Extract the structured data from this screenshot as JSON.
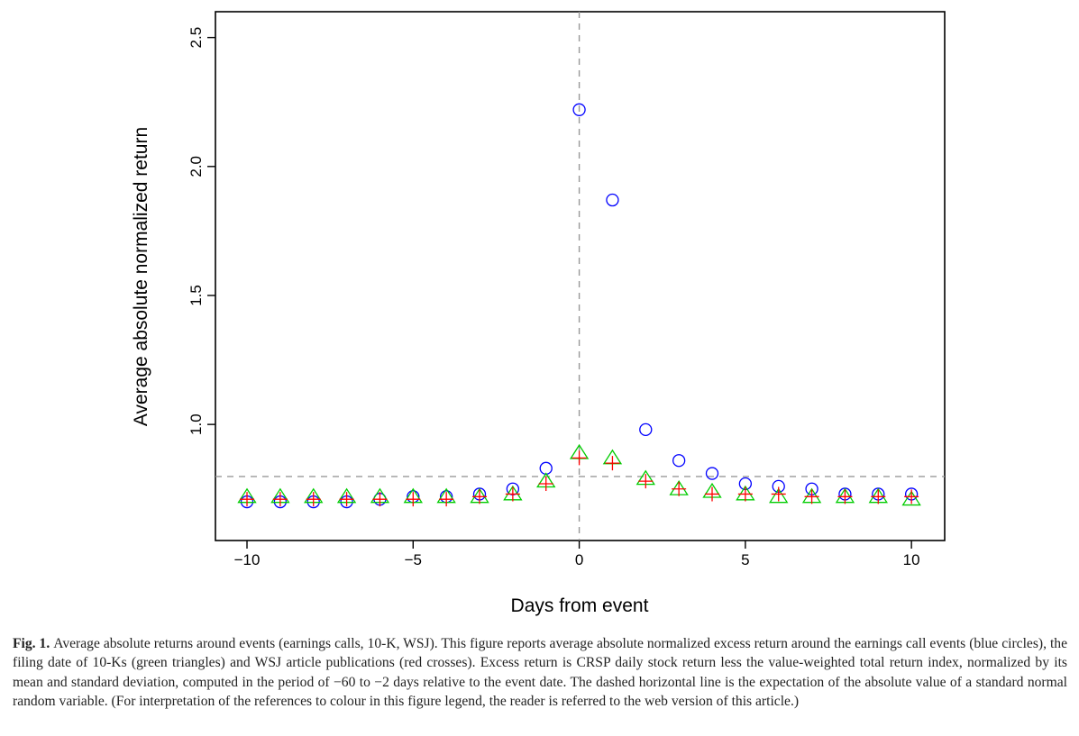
{
  "chart_data": {
    "type": "scatter",
    "xlabel": "Days from event",
    "ylabel": "Average absolute normalized return",
    "xlim": [
      -10.95,
      11.0
    ],
    "ylim": [
      0.55,
      2.6
    ],
    "xticks": [
      -10,
      -5,
      0,
      5,
      10
    ],
    "xtick_labels": [
      "−10",
      "−5",
      "0",
      "5",
      "10"
    ],
    "yticks": [
      1.0,
      1.5,
      2.0,
      2.5
    ],
    "ytick_labels": [
      "1.0",
      "1.5",
      "2.0",
      "2.5"
    ],
    "grid": false,
    "reference_lines": {
      "horizontal": 0.798,
      "vertical": 0,
      "style": "dashed",
      "color": "#999999"
    },
    "x": [
      -10,
      -9,
      -8,
      -7,
      -6,
      -5,
      -4,
      -3,
      -2,
      -1,
      0,
      1,
      2,
      3,
      4,
      5,
      6,
      7,
      8,
      9,
      10
    ],
    "series": [
      {
        "marker": "circle",
        "color": "#0000ff",
        "values": [
          0.7,
          0.7,
          0.7,
          0.7,
          0.71,
          0.72,
          0.72,
          0.73,
          0.75,
          0.83,
          2.22,
          1.87,
          0.98,
          0.86,
          0.81,
          0.77,
          0.76,
          0.75,
          0.73,
          0.73,
          0.73
        ]
      },
      {
        "marker": "triangle",
        "color": "#00cc00",
        "values": [
          0.72,
          0.72,
          0.72,
          0.72,
          0.72,
          0.72,
          0.72,
          0.72,
          0.73,
          0.78,
          0.89,
          0.87,
          0.79,
          0.75,
          0.74,
          0.73,
          0.72,
          0.72,
          0.72,
          0.72,
          0.71
        ]
      },
      {
        "marker": "cross",
        "color": "#ff0000",
        "values": [
          0.71,
          0.71,
          0.71,
          0.71,
          0.71,
          0.71,
          0.71,
          0.72,
          0.73,
          0.77,
          0.87,
          0.85,
          0.78,
          0.75,
          0.73,
          0.73,
          0.73,
          0.72,
          0.72,
          0.72,
          0.72
        ]
      }
    ]
  },
  "caption": {
    "label": "Fig. 1.",
    "text": "Average absolute returns around events (earnings calls, 10-K, WSJ). This figure reports average absolute normalized excess return around the earnings call events (blue circles), the filing date of 10-Ks (green triangles) and WSJ article publications (red crosses). Excess return is CRSP daily stock return less the value-weighted total return index, normalized by its mean and standard deviation, computed in the period of −60 to −2 days relative to the event date. The dashed horizontal line is the expectation of the absolute value of a standard normal random variable. (For interpretation of the references to colour in this figure legend, the reader is referred to the web version of this article.)"
  }
}
